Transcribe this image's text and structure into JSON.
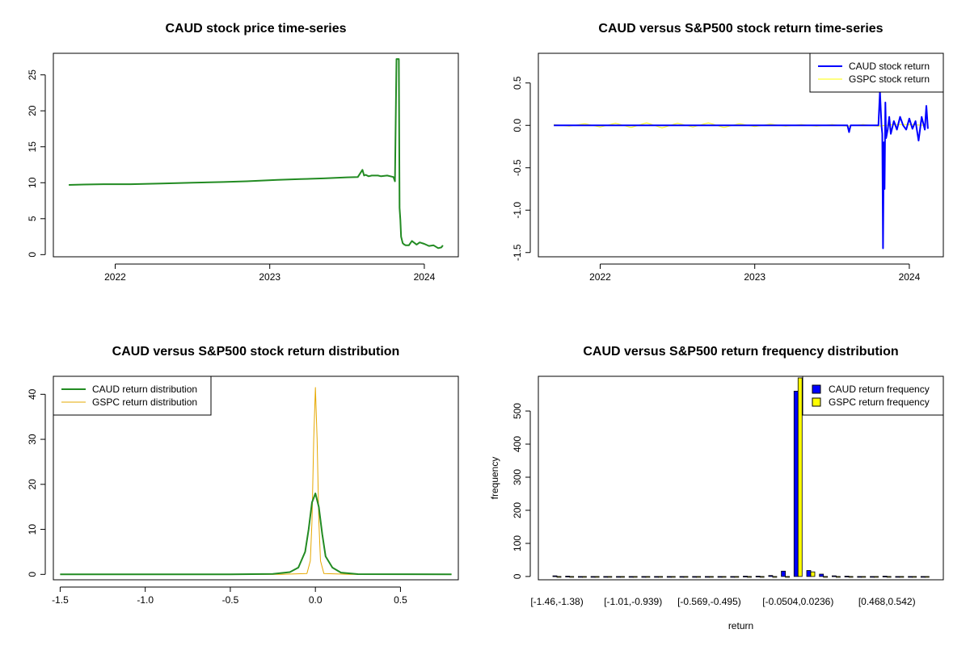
{
  "charts": [
    {
      "type": "line",
      "title": "CAUD stock price time-series",
      "x_ticks": [
        "2022",
        "2023",
        "2024"
      ],
      "x_tick_values": [
        2022.0,
        2023.0,
        2024.0
      ],
      "xlim": [
        2021.6,
        2024.22
      ],
      "y_ticks": [
        "0",
        "5",
        "10",
        "15",
        "20",
        "25"
      ],
      "y_tick_values": [
        0,
        5,
        10,
        15,
        20,
        25
      ],
      "ylim": [
        -0.3,
        28
      ],
      "legend": null,
      "colors": {
        "price": "#228B22"
      },
      "series": [
        {
          "key": "price",
          "x": [
            2021.7,
            2021.8,
            2021.95,
            2022.1,
            2022.3,
            2022.5,
            2022.7,
            2022.85,
            2022.95,
            2023.05,
            2023.2,
            2023.35,
            2023.5,
            2023.57,
            2023.6,
            2023.61,
            2023.62,
            2023.64,
            2023.66,
            2023.7,
            2023.72,
            2023.76,
            2023.8,
            2023.81,
            2023.82,
            2023.83,
            2023.835,
            2023.84,
            2023.845,
            2023.85,
            2023.86,
            2023.87,
            2023.88,
            2023.9,
            2023.92,
            2023.95,
            2023.97,
            2024.0,
            2024.03,
            2024.06,
            2024.09,
            2024.11,
            2024.12
          ],
          "y": [
            9.7,
            9.75,
            9.8,
            9.8,
            9.9,
            10.0,
            10.1,
            10.2,
            10.3,
            10.4,
            10.5,
            10.6,
            10.75,
            10.8,
            11.8,
            11.0,
            11.1,
            10.9,
            11.0,
            11.0,
            10.9,
            11.0,
            10.8,
            10.2,
            27.2,
            27.2,
            27.2,
            6.5,
            4.8,
            2.5,
            1.6,
            1.4,
            1.3,
            1.3,
            1.9,
            1.4,
            1.7,
            1.5,
            1.2,
            1.3,
            0.9,
            1.0,
            1.3
          ]
        }
      ]
    },
    {
      "type": "line",
      "title": "CAUD versus S&P500 stock return time-series",
      "x_ticks": [
        "2022",
        "2023",
        "2024"
      ],
      "x_tick_values": [
        2022.0,
        2023.0,
        2024.0
      ],
      "xlim": [
        2021.6,
        2024.22
      ],
      "y_ticks": [
        "-1.5",
        "-1.0",
        "-0.5",
        "0.0",
        "0.5"
      ],
      "y_tick_values": [
        -1.5,
        -1.0,
        -0.5,
        0.0,
        0.5
      ],
      "ylim": [
        -1.55,
        0.85
      ],
      "legend": {
        "position": "top-right",
        "entries": [
          "CAUD stock return",
          "GSPC stock return"
        ]
      },
      "colors": {
        "caud": "#0000FF",
        "gspc": "#FFFF00"
      },
      "series": [
        {
          "key": "gspc",
          "x": [
            2021.7,
            2021.8,
            2021.9,
            2022.0,
            2022.1,
            2022.2,
            2022.3,
            2022.4,
            2022.5,
            2022.6,
            2022.7,
            2022.8,
            2022.9,
            2023.0,
            2023.1,
            2023.2,
            2023.3,
            2023.4,
            2023.5,
            2023.6,
            2023.7,
            2023.8,
            2023.9,
            2024.0,
            2024.1
          ],
          "y": [
            0.01,
            -0.01,
            0.02,
            -0.02,
            0.025,
            -0.025,
            0.03,
            -0.03,
            0.025,
            -0.02,
            0.03,
            -0.025,
            0.02,
            -0.015,
            0.015,
            -0.01,
            0.01,
            -0.01,
            0.01,
            -0.01,
            0.01,
            -0.01,
            0.01,
            0.01,
            0.0
          ]
        },
        {
          "key": "caud",
          "x": [
            2021.7,
            2022.0,
            2022.5,
            2023.0,
            2023.5,
            2023.6,
            2023.61,
            2023.62,
            2023.8,
            2023.81,
            2023.82,
            2023.825,
            2023.83,
            2023.835,
            2023.84,
            2023.845,
            2023.85,
            2023.86,
            2023.87,
            2023.88,
            2023.9,
            2023.92,
            2023.94,
            2023.96,
            2023.98,
            2024.0,
            2024.02,
            2024.04,
            2024.06,
            2024.08,
            2024.1,
            2024.11,
            2024.12
          ],
          "y": [
            0.0,
            0.0,
            0.0,
            0.0,
            0.0,
            0.0,
            -0.08,
            0.0,
            0.0,
            0.4,
            0.0,
            -0.1,
            -1.45,
            -0.2,
            -0.75,
            0.27,
            -0.15,
            -0.05,
            0.1,
            -0.1,
            0.05,
            -0.05,
            0.1,
            0.0,
            -0.05,
            0.08,
            -0.04,
            0.05,
            -0.18,
            0.1,
            -0.05,
            0.23,
            -0.04
          ]
        }
      ]
    },
    {
      "type": "line",
      "title": "CAUD versus S&P500 stock return distribution",
      "x_ticks": [
        "-1.5",
        "-1.0",
        "-0.5",
        "0.0",
        "0.5"
      ],
      "x_tick_values": [
        -1.5,
        -1.0,
        -0.5,
        0.0,
        0.5
      ],
      "xlim": [
        -1.54,
        0.84
      ],
      "y_ticks": [
        "0",
        "10",
        "20",
        "30",
        "40"
      ],
      "y_tick_values": [
        0,
        10,
        20,
        30,
        40
      ],
      "ylim": [
        -1.2,
        44
      ],
      "legend": {
        "position": "top-left",
        "entries": [
          "CAUD return distribution",
          "GSPC return distribution"
        ]
      },
      "colors": {
        "caud": "#228B22",
        "gspc": "#E6A800"
      },
      "series": [
        {
          "key": "gspc",
          "x": [
            -1.5,
            -0.2,
            -0.05,
            -0.03,
            -0.02,
            -0.01,
            0.0,
            0.01,
            0.02,
            0.03,
            0.05,
            0.2,
            0.8
          ],
          "y": [
            0,
            0,
            0.2,
            3,
            12,
            30,
            41.5,
            30,
            12,
            3,
            0.2,
            0,
            0
          ]
        },
        {
          "key": "caud",
          "x": [
            -1.5,
            -0.5,
            -0.25,
            -0.15,
            -0.1,
            -0.06,
            -0.04,
            -0.02,
            0.0,
            0.02,
            0.04,
            0.06,
            0.1,
            0.15,
            0.25,
            0.8
          ],
          "y": [
            0,
            0.02,
            0.1,
            0.5,
            1.5,
            5,
            10,
            16,
            18,
            15,
            9,
            4,
            1.5,
            0.4,
            0.05,
            0
          ]
        }
      ]
    },
    {
      "type": "bar",
      "title": "CAUD versus S&P500 return frequency distribution",
      "xlabel": "return",
      "ylabel": "frequency",
      "category_tick_labels": [
        "[-1.46,-1.38)",
        "[-1.01,-0.939)",
        "[-0.569,-0.495)",
        "[-0.0504,0.0236)",
        "[0.468,0.542)"
      ],
      "category_tick_positions": [
        0,
        6,
        12,
        19,
        26
      ],
      "y_ticks": [
        "0",
        "100",
        "200",
        "300",
        "400",
        "500"
      ],
      "y_tick_values": [
        0,
        100,
        200,
        300,
        400,
        500
      ],
      "ylim": [
        -10,
        605
      ],
      "legend": {
        "position": "top-right",
        "entries": [
          "CAUD return frequency",
          "GSPC return frequency"
        ]
      },
      "colors": {
        "caud": "#0000FF",
        "gspc": "#FFFF00"
      },
      "series": [
        {
          "key": "caud",
          "values": [
            2,
            1,
            0,
            0,
            0,
            0,
            0,
            0,
            0,
            0,
            0,
            0,
            0,
            0,
            0,
            1,
            1,
            3,
            16,
            560,
            18,
            7,
            2,
            1,
            0,
            0,
            1,
            0,
            0,
            0
          ]
        },
        {
          "key": "gspc",
          "values": [
            0,
            0,
            0,
            0,
            0,
            0,
            0,
            0,
            0,
            0,
            0,
            0,
            0,
            0,
            0,
            0,
            0,
            0,
            0,
            600,
            14,
            0,
            0,
            0,
            0,
            0,
            0,
            0,
            0,
            0
          ]
        }
      ]
    }
  ]
}
